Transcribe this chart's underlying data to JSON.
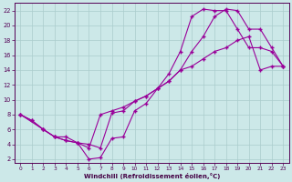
{
  "xlabel": "Windchill (Refroidissement éolien,°C)",
  "bg_color": "#cce8e8",
  "line_color": "#990099",
  "grid_color": "#aacccc",
  "xlim": [
    -0.5,
    23.5
  ],
  "ylim": [
    1.5,
    23
  ],
  "xticks": [
    0,
    1,
    2,
    3,
    4,
    5,
    6,
    7,
    8,
    9,
    10,
    11,
    12,
    13,
    14,
    15,
    16,
    17,
    18,
    19,
    20,
    21,
    22,
    23
  ],
  "yticks": [
    2,
    4,
    6,
    8,
    10,
    12,
    14,
    16,
    18,
    20,
    22
  ],
  "curve1_x": [
    0,
    1,
    2,
    3,
    4,
    5,
    6,
    7,
    8,
    9,
    10,
    11,
    12,
    13,
    14,
    15,
    16,
    17,
    18,
    19,
    20,
    21,
    22,
    23
  ],
  "curve1_y": [
    8.0,
    7.2,
    6.0,
    5.0,
    4.5,
    4.2,
    2.0,
    2.2,
    4.8,
    5.0,
    8.5,
    9.5,
    11.5,
    13.5,
    16.5,
    21.2,
    22.2,
    22.0,
    22.0,
    19.5,
    17.0,
    17.0,
    16.5,
    14.5
  ],
  "curve2_x": [
    0,
    2,
    3,
    4,
    5,
    6,
    7,
    8,
    9,
    10,
    11,
    12,
    13,
    14,
    15,
    16,
    17,
    18,
    19,
    20,
    21,
    22,
    23
  ],
  "curve2_y": [
    8.0,
    6.0,
    5.0,
    5.0,
    4.2,
    4.0,
    3.5,
    8.2,
    8.5,
    9.8,
    10.5,
    11.5,
    12.5,
    14.0,
    16.5,
    18.5,
    21.2,
    22.2,
    22.0,
    19.5,
    19.5,
    17.0,
    14.5
  ],
  "curve3_x": [
    0,
    1,
    2,
    3,
    4,
    5,
    6,
    7,
    8,
    9,
    10,
    11,
    12,
    13,
    14,
    15,
    16,
    17,
    18,
    19,
    20,
    21,
    22,
    23
  ],
  "curve3_y": [
    8.0,
    7.2,
    6.0,
    5.0,
    4.5,
    4.2,
    3.5,
    8.0,
    8.5,
    9.0,
    9.8,
    10.5,
    11.5,
    12.5,
    14.0,
    14.5,
    15.5,
    16.5,
    17.0,
    18.0,
    18.5,
    14.0,
    14.5,
    14.5
  ]
}
